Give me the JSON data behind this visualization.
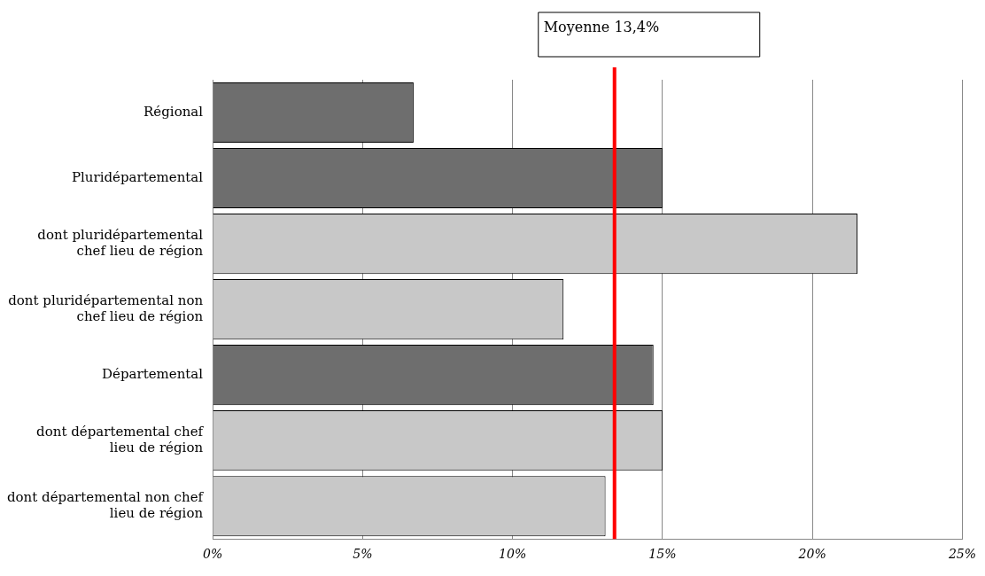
{
  "chart_data": {
    "type": "bar",
    "orientation": "horizontal",
    "categories": [
      "Régional",
      "Pluridépartemental",
      "dont pluridépartemental chef lieu de région",
      "dont pluridépartemental non chef lieu de région",
      "Départemental",
      "dont départemental chef lieu de région",
      "dont départemental non chef lieu de région"
    ],
    "values": [
      6.7,
      15.0,
      21.5,
      11.7,
      14.7,
      15.0,
      13.1
    ],
    "colors": [
      "#6e6e6e",
      "#6e6e6e",
      "#c8c8c8",
      "#c8c8c8",
      "#6e6e6e",
      "#c8c8c8",
      "#c8c8c8"
    ],
    "xlim": [
      0,
      25
    ],
    "xticks": [
      {
        "value": 0,
        "label": "0%"
      },
      {
        "value": 5,
        "label": "5%"
      },
      {
        "value": 10,
        "label": "10%"
      },
      {
        "value": 15,
        "label": "15%"
      },
      {
        "value": 20,
        "label": "20%"
      },
      {
        "value": 25,
        "label": "25%"
      }
    ],
    "grid": "x",
    "legend": false,
    "ref_lines": [
      {
        "axis": "x",
        "value": 13.4,
        "label": "Moyenne 13,4%",
        "color": "#ff0000"
      }
    ]
  }
}
